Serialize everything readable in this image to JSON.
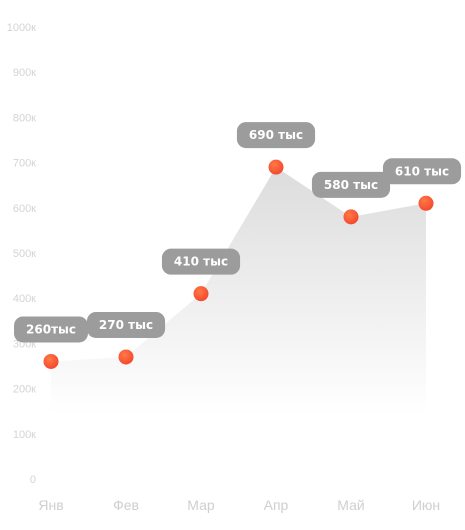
{
  "chart_data": {
    "type": "area",
    "categories": [
      "Янв",
      "Фев",
      "Мар",
      "Апр",
      "Май",
      "Июн"
    ],
    "values": [
      260,
      270,
      410,
      690,
      580,
      610
    ],
    "data_labels": [
      "260тыс",
      "270 тыс",
      "410 тыс",
      "690 тыс",
      "580 тыс",
      "610 тыс"
    ],
    "y_ticks": [
      {
        "value": 0,
        "label": "0"
      },
      {
        "value": 100,
        "label": "100к"
      },
      {
        "value": 200,
        "label": "200к"
      },
      {
        "value": 300,
        "label": "300к"
      },
      {
        "value": 400,
        "label": "400к"
      },
      {
        "value": 500,
        "label": "500к"
      },
      {
        "value": 600,
        "label": "600к"
      },
      {
        "value": 700,
        "label": "700к"
      },
      {
        "value": 800,
        "label": "800к"
      },
      {
        "value": 900,
        "label": "900к"
      },
      {
        "value": 1000,
        "label": "1000к"
      }
    ],
    "ylim": [
      0,
      1000
    ],
    "grid": false,
    "colors": {
      "point": "#f4492f",
      "point_highlight": "#ff7a45",
      "area_top": "#dcdcdc",
      "area_bottom": "#ffffff",
      "bubble": "#9c9c9c",
      "bubble_text": "#ffffff",
      "y_tick_text": "#d4d4d4",
      "x_tick_text": "#cfcfcf"
    }
  }
}
